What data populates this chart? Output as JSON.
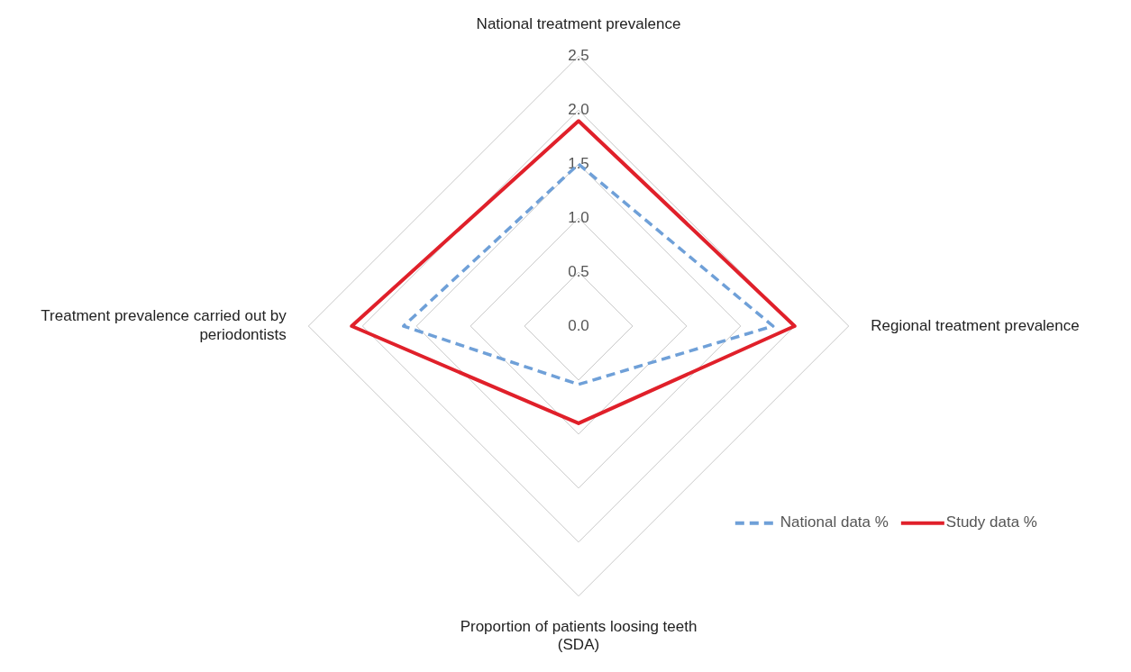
{
  "chart_data": {
    "type": "radar",
    "categories": [
      "National treatment prevalence",
      "Regional treatment prevalence",
      "Proportion of patients loosing teeth (SDA)",
      "Treatment prevalence carried out by periodontists"
    ],
    "series": [
      {
        "name": "National data %",
        "color": "#6fa0d8",
        "line_style": "dashed",
        "values": [
          1.5,
          1.8,
          0.54,
          1.62
        ]
      },
      {
        "name": "Study data %",
        "color": "#e0202a",
        "line_style": "solid",
        "values": [
          1.9,
          2.0,
          0.9,
          2.1
        ]
      }
    ],
    "ylim": [
      0,
      2.5
    ],
    "yticks": [
      {
        "value": 0,
        "label": "0.0"
      },
      {
        "value": 0.5,
        "label": "0.5"
      },
      {
        "value": 1,
        "label": "1.0"
      },
      {
        "value": 1.5,
        "label": "1.5"
      },
      {
        "value": 2,
        "label": "2.0"
      },
      {
        "value": 2.5,
        "label": "2.5"
      }
    ],
    "grid": true,
    "legend": "bottom right",
    "marker": "none"
  }
}
